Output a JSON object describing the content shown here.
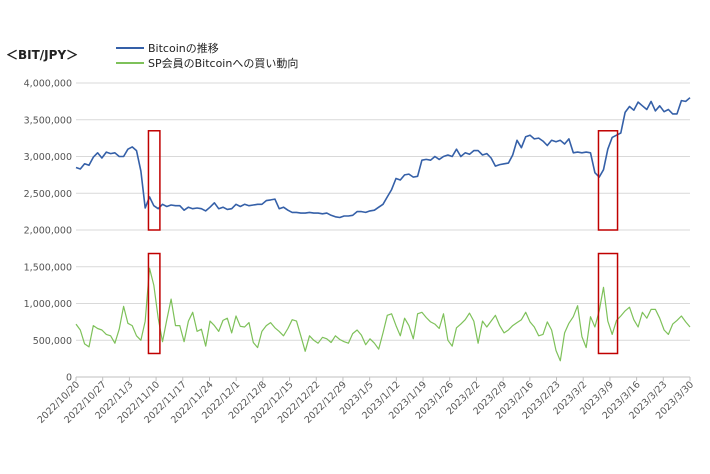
{
  "chart_data": {
    "type": "line",
    "unit_label": "＜BIT/JPY＞",
    "ylim": [
      0,
      4000000
    ],
    "y_ticks": [
      {
        "value": 0,
        "label": "0"
      },
      {
        "value": 500000,
        "label": "500,000"
      },
      {
        "value": 1000000,
        "label": "1,000,000"
      },
      {
        "value": 1500000,
        "label": "1,500,000"
      },
      {
        "value": 2000000,
        "label": "2,000,000"
      },
      {
        "value": 2500000,
        "label": "2,500,000"
      },
      {
        "value": 3000000,
        "label": "3,000,000"
      },
      {
        "value": 3500000,
        "label": "3,500,000"
      },
      {
        "value": 4000000,
        "label": "4,000,000"
      }
    ],
    "x_ticks": [
      "2022/10/20",
      "2022/10/27",
      "2022/11/3",
      "2022/11/10",
      "2022/11/17",
      "2022/11/24",
      "2022/12/1",
      "2022/12/8",
      "2022/12/15",
      "2022/12/22",
      "2022/12/29",
      "2023/1/5",
      "2023/1/12",
      "2023/1/19",
      "2023/1/26",
      "2023/2/2",
      "2023/2/9",
      "2023/2/16",
      "2023/2/23",
      "2023/3/2",
      "2023/3/9",
      "2023/3/16",
      "2023/3/23",
      "2023/3/30"
    ],
    "series": [
      {
        "name": "Bitcoinの推移",
        "color": "#3560a8",
        "values": [
          2850000,
          2830000,
          2900000,
          2880000,
          2990000,
          3050000,
          2980000,
          3060000,
          3040000,
          3050000,
          3000000,
          3000000,
          3100000,
          3130000,
          3080000,
          2800000,
          2300000,
          2450000,
          2330000,
          2290000,
          2350000,
          2320000,
          2340000,
          2330000,
          2330000,
          2270000,
          2310000,
          2290000,
          2300000,
          2290000,
          2260000,
          2310000,
          2370000,
          2290000,
          2310000,
          2280000,
          2290000,
          2350000,
          2320000,
          2350000,
          2330000,
          2340000,
          2350000,
          2350000,
          2400000,
          2410000,
          2420000,
          2290000,
          2310000,
          2270000,
          2240000,
          2240000,
          2230000,
          2230000,
          2240000,
          2230000,
          2230000,
          2220000,
          2230000,
          2200000,
          2180000,
          2170000,
          2190000,
          2190000,
          2200000,
          2250000,
          2250000,
          2240000,
          2260000,
          2270000,
          2310000,
          2350000,
          2450000,
          2550000,
          2700000,
          2680000,
          2750000,
          2760000,
          2720000,
          2730000,
          2950000,
          2960000,
          2950000,
          3000000,
          2960000,
          3000000,
          3020000,
          3000000,
          3100000,
          3000000,
          3050000,
          3030000,
          3080000,
          3080000,
          3020000,
          3040000,
          2980000,
          2870000,
          2890000,
          2900000,
          2910000,
          3020000,
          3220000,
          3120000,
          3270000,
          3290000,
          3240000,
          3250000,
          3210000,
          3150000,
          3220000,
          3200000,
          3220000,
          3170000,
          3240000,
          3050000,
          3060000,
          3050000,
          3060000,
          3050000,
          2780000,
          2720000,
          2820000,
          3100000,
          3260000,
          3290000,
          3320000,
          3600000,
          3680000,
          3630000,
          3740000,
          3690000,
          3640000,
          3750000,
          3620000,
          3690000,
          3610000,
          3640000,
          3580000,
          3580000,
          3760000,
          3750000,
          3800000
        ]
      },
      {
        "name": "SP会員のBitcoinへの買い動向",
        "color": "#7ec15a",
        "values": [
          720000,
          640000,
          450000,
          410000,
          700000,
          660000,
          640000,
          580000,
          560000,
          460000,
          650000,
          960000,
          730000,
          700000,
          560000,
          500000,
          760000,
          1480000,
          1250000,
          800000,
          480000,
          780000,
          1060000,
          700000,
          700000,
          480000,
          760000,
          880000,
          620000,
          650000,
          420000,
          760000,
          700000,
          620000,
          770000,
          800000,
          600000,
          830000,
          690000,
          680000,
          740000,
          470000,
          400000,
          620000,
          700000,
          740000,
          670000,
          620000,
          560000,
          660000,
          780000,
          760000,
          560000,
          350000,
          560000,
          500000,
          460000,
          540000,
          520000,
          470000,
          560000,
          510000,
          480000,
          460000,
          590000,
          640000,
          570000,
          440000,
          520000,
          460000,
          380000,
          600000,
          840000,
          860000,
          700000,
          560000,
          800000,
          700000,
          520000,
          860000,
          880000,
          810000,
          750000,
          720000,
          660000,
          860000,
          500000,
          420000,
          670000,
          720000,
          780000,
          870000,
          760000,
          460000,
          760000,
          680000,
          760000,
          840000,
          700000,
          600000,
          640000,
          700000,
          740000,
          780000,
          880000,
          750000,
          680000,
          560000,
          580000,
          750000,
          640000,
          360000,
          220000,
          600000,
          730000,
          820000,
          970000,
          550000,
          400000,
          820000,
          680000,
          900000,
          1220000,
          760000,
          580000,
          770000,
          830000,
          900000,
          950000,
          780000,
          680000,
          880000,
          800000,
          920000,
          920000,
          800000,
          640000,
          580000,
          720000,
          770000,
          830000,
          750000,
          680000
        ]
      }
    ],
    "highlight_boxes": [
      {
        "x_from": "2022/11/8",
        "x_to": "2022/11/11",
        "y_ranges": [
          [
            2000000,
            3350000
          ],
          [
            320000,
            1680000
          ]
        ]
      },
      {
        "x_from": "2023/3/6",
        "x_to": "2023/3/11",
        "y_ranges": [
          [
            2000000,
            3350000
          ],
          [
            320000,
            1680000
          ]
        ]
      }
    ],
    "highlight_color": "#c00000",
    "grid": true,
    "legend_position": "top-left"
  }
}
